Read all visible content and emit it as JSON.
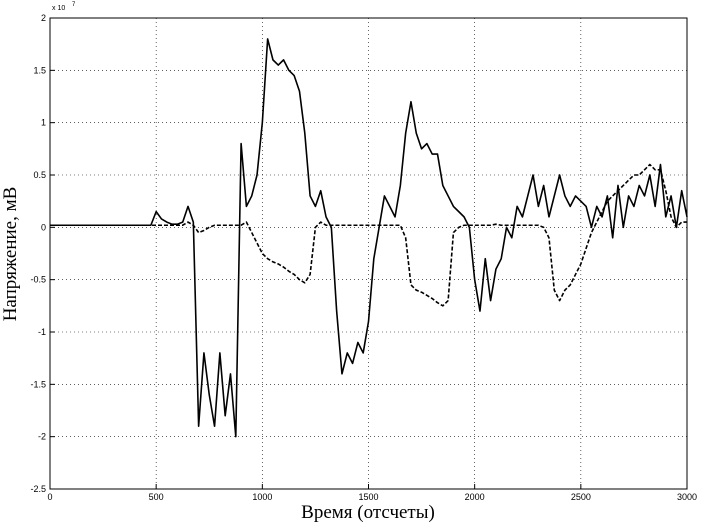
{
  "chart_data": {
    "type": "line",
    "xlabel": "Время (отсчеты)",
    "ylabel": "Напряжение, мВ",
    "y_multiplier": "x 10",
    "y_multiplier_exp": "7",
    "xlim": [
      0,
      3000
    ],
    "ylim": [
      -2.5,
      2
    ],
    "xticks": [
      0,
      500,
      1000,
      1500,
      2000,
      2500,
      3000
    ],
    "yticks": [
      -2.5,
      -2,
      -1.5,
      -1,
      -0.5,
      0,
      0.5,
      1,
      1.5,
      2
    ],
    "grid": true,
    "x": [
      0,
      25,
      50,
      75,
      100,
      125,
      150,
      175,
      200,
      225,
      250,
      275,
      300,
      325,
      350,
      375,
      400,
      425,
      450,
      475,
      500,
      525,
      550,
      575,
      600,
      625,
      650,
      675,
      700,
      725,
      750,
      775,
      800,
      825,
      850,
      875,
      900,
      925,
      950,
      975,
      1000,
      1025,
      1050,
      1075,
      1100,
      1125,
      1150,
      1175,
      1200,
      1225,
      1250,
      1275,
      1300,
      1325,
      1350,
      1375,
      1400,
      1425,
      1450,
      1475,
      1500,
      1525,
      1550,
      1575,
      1600,
      1625,
      1650,
      1675,
      1700,
      1725,
      1750,
      1775,
      1800,
      1825,
      1850,
      1875,
      1900,
      1925,
      1950,
      1975,
      2000,
      2025,
      2050,
      2075,
      2100,
      2125,
      2150,
      2175,
      2200,
      2225,
      2250,
      2275,
      2300,
      2325,
      2350,
      2375,
      2400,
      2425,
      2450,
      2475,
      2500,
      2525,
      2550,
      2575,
      2600,
      2625,
      2650,
      2675,
      2700,
      2725,
      2750,
      2775,
      2800,
      2825,
      2850,
      2875,
      2900,
      2925,
      2950,
      2975,
      3000
    ],
    "series": [
      {
        "color": "#000000",
        "dash": "solid",
        "values": [
          0.02,
          0.02,
          0.02,
          0.02,
          0.02,
          0.02,
          0.02,
          0.02,
          0.02,
          0.02,
          0.02,
          0.02,
          0.02,
          0.02,
          0.02,
          0.02,
          0.02,
          0.02,
          0.02,
          0.02,
          0.15,
          0.08,
          0.05,
          0.03,
          0.03,
          0.05,
          0.2,
          0.05,
          -1.9,
          -1.2,
          -1.6,
          -1.9,
          -1.2,
          -1.8,
          -1.4,
          -2.0,
          0.8,
          0.2,
          0.3,
          0.5,
          1.0,
          1.8,
          1.6,
          1.55,
          1.6,
          1.5,
          1.45,
          1.3,
          0.9,
          0.3,
          0.2,
          0.35,
          0.1,
          0.0,
          -0.8,
          -1.4,
          -1.2,
          -1.3,
          -1.1,
          -1.2,
          -0.9,
          -0.3,
          0.0,
          0.3,
          0.2,
          0.1,
          0.4,
          0.9,
          1.2,
          0.9,
          0.75,
          0.8,
          0.7,
          0.7,
          0.4,
          0.3,
          0.2,
          0.15,
          0.1,
          0.0,
          -0.5,
          -0.8,
          -0.3,
          -0.7,
          -0.4,
          -0.3,
          0.0,
          -0.1,
          0.2,
          0.1,
          0.3,
          0.5,
          0.2,
          0.4,
          0.1,
          0.3,
          0.5,
          0.3,
          0.2,
          0.3,
          0.25,
          0.2,
          0.0,
          0.2,
          0.1,
          0.3,
          -0.1,
          0.4,
          0.0,
          0.3,
          0.2,
          0.4,
          0.3,
          0.5,
          0.2,
          0.6,
          0.1,
          0.3,
          0.0,
          0.35,
          0.1
        ]
      },
      {
        "color": "#000000",
        "dash": "dashed",
        "values": [
          0.02,
          0.02,
          0.02,
          0.02,
          0.02,
          0.02,
          0.02,
          0.02,
          0.02,
          0.02,
          0.02,
          0.02,
          0.02,
          0.02,
          0.02,
          0.02,
          0.02,
          0.02,
          0.02,
          0.02,
          0.02,
          0.02,
          0.02,
          0.02,
          0.02,
          0.02,
          0.05,
          0.02,
          -0.05,
          -0.03,
          0.0,
          0.02,
          0.02,
          0.02,
          0.02,
          0.02,
          0.02,
          0.05,
          -0.05,
          -0.15,
          -0.25,
          -0.3,
          -0.33,
          -0.35,
          -0.38,
          -0.42,
          -0.45,
          -0.5,
          -0.53,
          -0.45,
          0.0,
          0.05,
          0.02,
          0.02,
          0.02,
          0.02,
          0.02,
          0.02,
          0.02,
          0.02,
          0.02,
          0.02,
          0.02,
          0.02,
          0.02,
          0.02,
          0.02,
          -0.1,
          -0.55,
          -0.6,
          -0.62,
          -0.65,
          -0.68,
          -0.72,
          -0.75,
          -0.7,
          -0.05,
          0.0,
          0.02,
          0.02,
          0.02,
          0.02,
          0.02,
          0.02,
          0.03,
          0.02,
          0.02,
          0.02,
          0.02,
          0.02,
          0.02,
          0.02,
          0.02,
          0.0,
          -0.1,
          -0.6,
          -0.7,
          -0.6,
          -0.55,
          -0.45,
          -0.35,
          -0.2,
          -0.05,
          0.05,
          0.15,
          0.25,
          0.3,
          0.35,
          0.4,
          0.45,
          0.5,
          0.5,
          0.55,
          0.6,
          0.55,
          0.55,
          0.35,
          0.1,
          0.0,
          0.05,
          0.05
        ]
      }
    ]
  }
}
